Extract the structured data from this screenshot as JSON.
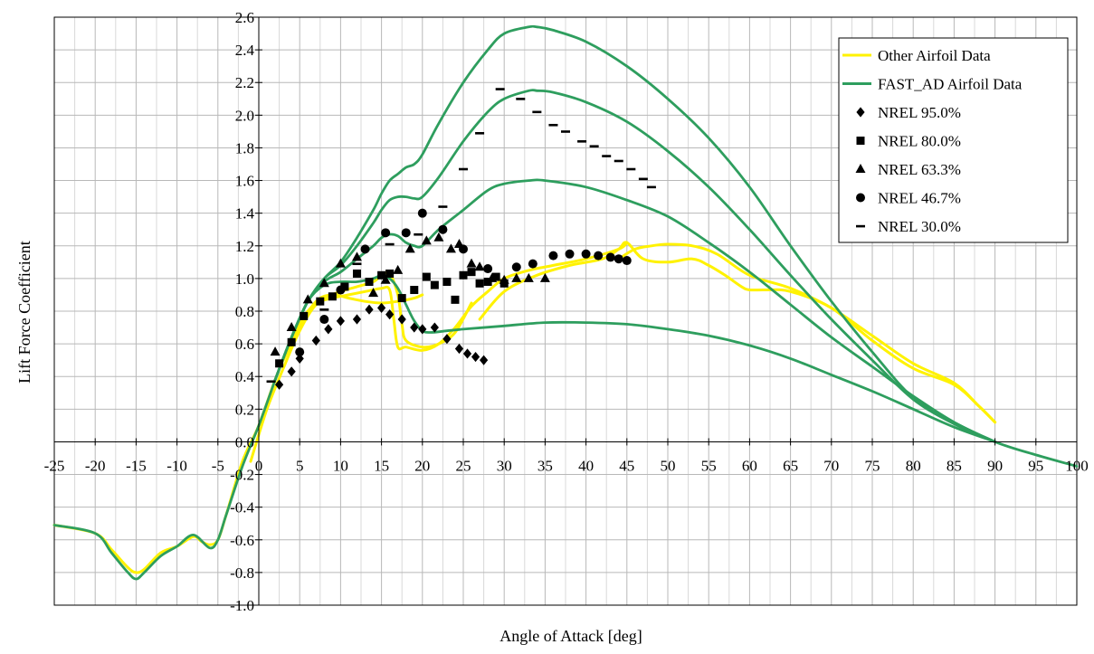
{
  "chart_data": {
    "type": "scatter",
    "title": "",
    "xlabel": "Angle of Attack [deg]",
    "ylabel": "Lift Force Coefficient",
    "xlim": [
      -25,
      100
    ],
    "ylim": [
      -1.0,
      2.6
    ],
    "x_ticks": [
      -25,
      -20,
      -15,
      -10,
      -5,
      0,
      5,
      10,
      15,
      20,
      25,
      30,
      35,
      40,
      45,
      50,
      55,
      60,
      65,
      70,
      75,
      80,
      85,
      90,
      95,
      100
    ],
    "x_tick_labels": [
      "-25",
      "-20",
      "-15",
      "-10",
      "-5",
      "0",
      "5",
      "10",
      "15",
      "20",
      "25",
      "30",
      "35",
      "40",
      "45",
      "50",
      "55",
      "60",
      "65",
      "70",
      "75",
      "80",
      "85",
      "90",
      "95",
      "100"
    ],
    "y_ticks": [
      -1.0,
      -0.8,
      -0.6,
      -0.4,
      -0.2,
      0.0,
      0.2,
      0.4,
      0.6,
      0.8,
      1.0,
      1.2,
      1.4,
      1.6,
      1.8,
      2.0,
      2.2,
      2.4,
      2.6
    ],
    "y_tick_labels": [
      "-1.0",
      "-0.8",
      "-0.6",
      "-0.4",
      "-0.2",
      "0.0",
      "0.2",
      "0.4",
      "0.6",
      "0.8",
      "1.0",
      "1.2",
      "1.4",
      "1.6",
      "1.8",
      "2.0",
      "2.2",
      "2.4",
      "2.6"
    ],
    "grid": true,
    "legend_position": "top-right",
    "colors": {
      "other": "#FFF200",
      "fast": "#2E9E5E",
      "marker": "#000000",
      "grid": "#B8B8B8",
      "axis": "#000000"
    },
    "series": [
      {
        "name": "Other Airfoil Data",
        "kind": "line",
        "color": "#FFF200",
        "legend": true,
        "curves": [
          {
            "x": [
              -25,
              -20,
              -18,
              -16,
              -15,
              -14,
              -12,
              -10,
              -8,
              -7,
              -6,
              -5,
              -4,
              -2,
              0,
              2,
              4,
              6,
              8,
              10,
              12,
              14,
              15,
              16,
              17,
              17.5,
              18,
              20,
              22,
              24,
              26
            ],
            "y": [
              -0.51,
              -0.56,
              -0.66,
              -0.77,
              -0.8,
              -0.78,
              -0.68,
              -0.64,
              -0.58,
              -0.61,
              -0.63,
              -0.6,
              -0.45,
              -0.12,
              0.1,
              0.38,
              0.62,
              0.8,
              0.88,
              0.92,
              0.95,
              0.98,
              1.02,
              1.03,
              0.9,
              0.72,
              0.62,
              0.58,
              0.6,
              0.67,
              0.85
            ]
          },
          {
            "x": [
              -1,
              1,
              3,
              5,
              7,
              9,
              11,
              13,
              15,
              16,
              16.5,
              17,
              18,
              20,
              22,
              24,
              26,
              28,
              30,
              33,
              36,
              40,
              44,
              45
            ],
            "y": [
              -0.12,
              0.2,
              0.45,
              0.68,
              0.84,
              0.88,
              0.9,
              0.92,
              0.94,
              0.93,
              0.75,
              0.58,
              0.58,
              0.56,
              0.6,
              0.7,
              0.83,
              0.92,
              1.0,
              1.05,
              1.08,
              1.12,
              1.18,
              1.22
            ]
          },
          {
            "x": [
              3,
              5,
              7,
              9,
              11,
              13,
              15,
              17,
              19,
              20
            ],
            "y": [
              0.5,
              0.7,
              0.86,
              0.9,
              0.88,
              0.86,
              0.85,
              0.86,
              0.88,
              0.9
            ]
          },
          {
            "x": [
              27,
              30,
              34,
              38,
              42,
              44,
              45,
              47,
              50,
              53,
              55,
              57,
              59,
              60,
              62,
              65,
              70,
              75,
              80,
              85,
              88,
              90
            ],
            "y": [
              0.75,
              0.92,
              1.02,
              1.08,
              1.12,
              1.18,
              1.22,
              1.12,
              1.1,
              1.12,
              1.08,
              1.02,
              0.95,
              0.93,
              0.93,
              0.92,
              0.82,
              0.62,
              0.45,
              0.35,
              0.22,
              0.12
            ]
          },
          {
            "x": [
              44,
              46,
              48,
              50,
              53,
              56,
              60,
              65,
              70,
              75,
              80,
              85,
              88,
              90
            ],
            "y": [
              1.12,
              1.18,
              1.2,
              1.21,
              1.2,
              1.15,
              1.02,
              0.94,
              0.82,
              0.65,
              0.48,
              0.36,
              0.22,
              0.12
            ]
          }
        ]
      },
      {
        "name": "FAST_AD Airfoil Data",
        "kind": "line",
        "color": "#2E9E5E",
        "legend": true,
        "curves": [
          {
            "x": [
              -25,
              -20,
              -18,
              -16,
              -15,
              -14,
              -12,
              -10,
              -8,
              -6,
              -5,
              -4,
              -2,
              0,
              2
            ],
            "y": [
              -0.51,
              -0.56,
              -0.68,
              -0.8,
              -0.84,
              -0.8,
              -0.7,
              -0.64,
              -0.57,
              -0.65,
              -0.6,
              -0.45,
              -0.15,
              0.1,
              0.38
            ]
          },
          {
            "x": [
              2,
              4,
              6,
              8,
              10,
              12,
              14,
              15,
              16,
              17,
              18,
              19,
              20,
              22,
              25,
              28,
              30,
              33,
              34,
              36,
              40,
              45,
              50,
              55,
              60,
              65,
              70,
              75,
              80,
              85,
              90,
              95,
              100
            ],
            "y": [
              0.38,
              0.64,
              0.86,
              1.0,
              1.1,
              1.25,
              1.42,
              1.52,
              1.6,
              1.64,
              1.68,
              1.7,
              1.76,
              1.95,
              2.2,
              2.4,
              2.5,
              2.54,
              2.54,
              2.52,
              2.45,
              2.3,
              2.1,
              1.86,
              1.56,
              1.2,
              0.86,
              0.55,
              0.27,
              0.12,
              0.0,
              -0.08,
              -0.15
            ]
          },
          {
            "x": [
              2,
              4,
              6,
              8,
              10,
              12,
              14,
              15,
              16,
              17,
              18,
              19,
              20,
              22,
              25,
              28,
              30,
              33,
              34,
              36,
              40,
              45,
              50,
              55,
              60,
              65,
              70,
              75,
              80,
              85,
              90
            ],
            "y": [
              0.38,
              0.64,
              0.86,
              1.0,
              1.08,
              1.2,
              1.34,
              1.42,
              1.48,
              1.5,
              1.5,
              1.49,
              1.5,
              1.62,
              1.84,
              2.02,
              2.1,
              2.15,
              2.15,
              2.14,
              2.08,
              1.96,
              1.78,
              1.56,
              1.3,
              1.02,
              0.75,
              0.5,
              0.26,
              0.11,
              0.0
            ]
          },
          {
            "x": [
              2,
              4,
              6,
              8,
              10,
              12,
              14,
              15,
              16,
              17,
              18,
              19,
              20,
              22,
              25,
              28,
              30,
              33,
              35,
              40,
              45,
              50,
              55,
              60,
              65,
              70,
              75,
              80,
              85,
              90
            ],
            "y": [
              0.38,
              0.64,
              0.86,
              0.98,
              1.04,
              1.12,
              1.2,
              1.25,
              1.27,
              1.26,
              1.22,
              1.2,
              1.2,
              1.3,
              1.42,
              1.54,
              1.58,
              1.6,
              1.6,
              1.56,
              1.48,
              1.38,
              1.22,
              1.04,
              0.84,
              0.64,
              0.46,
              0.28,
              0.12,
              0.0
            ]
          },
          {
            "x": [
              2,
              4,
              6,
              8,
              10,
              12,
              14,
              15,
              16,
              17,
              18,
              19,
              20,
              21,
              23,
              25,
              30,
              35,
              40,
              45,
              50,
              55,
              60,
              65,
              70,
              75,
              80,
              85,
              90
            ],
            "y": [
              0.38,
              0.64,
              0.86,
              0.96,
              0.98,
              0.98,
              1.0,
              1.02,
              1.0,
              0.94,
              0.84,
              0.74,
              0.68,
              0.67,
              0.68,
              0.69,
              0.71,
              0.73,
              0.73,
              0.72,
              0.69,
              0.65,
              0.59,
              0.51,
              0.41,
              0.31,
              0.2,
              0.09,
              0.0
            ]
          }
        ]
      },
      {
        "name": "NREL 95.0%",
        "kind": "scatter",
        "marker": "diamond",
        "color": "#000000",
        "legend": true,
        "x": [
          2.5,
          4,
          5,
          7,
          8.5,
          10,
          12,
          13.5,
          15,
          16,
          17.5,
          19,
          20,
          21.5,
          23,
          24.5,
          25.5,
          26.5,
          27.5
        ],
        "y": [
          0.35,
          0.43,
          0.51,
          0.62,
          0.69,
          0.74,
          0.75,
          0.81,
          0.82,
          0.78,
          0.75,
          0.7,
          0.69,
          0.7,
          0.63,
          0.57,
          0.54,
          0.52,
          0.5
        ]
      },
      {
        "name": "NREL 80.0%",
        "kind": "scatter",
        "marker": "square",
        "color": "#000000",
        "legend": true,
        "x": [
          2.5,
          4,
          5.5,
          7.5,
          9,
          10.5,
          12,
          13.5,
          15,
          16,
          17.5,
          19,
          20.5,
          21.5,
          23,
          24,
          25,
          26,
          27,
          28,
          29,
          30
        ],
        "y": [
          0.48,
          0.61,
          0.77,
          0.86,
          0.89,
          0.95,
          1.03,
          0.98,
          1.02,
          1.03,
          0.88,
          0.93,
          1.01,
          0.96,
          0.98,
          0.87,
          1.02,
          1.04,
          0.97,
          0.98,
          1.01,
          0.97
        ]
      },
      {
        "name": "NREL 63.3%",
        "kind": "scatter",
        "marker": "triangle",
        "color": "#000000",
        "legend": true,
        "x": [
          2,
          4,
          6,
          8,
          10,
          12,
          14,
          15.5,
          17,
          18.5,
          20.5,
          22,
          23.5,
          24.5,
          26,
          27,
          28.5,
          30,
          31.5,
          33,
          35
        ],
        "y": [
          0.55,
          0.7,
          0.87,
          0.97,
          1.09,
          1.13,
          0.91,
          0.99,
          1.05,
          1.18,
          1.23,
          1.25,
          1.18,
          1.21,
          1.09,
          1.07,
          1.0,
          0.99,
          1.0,
          1.0,
          1.0
        ]
      },
      {
        "name": "NREL 46.7%",
        "kind": "scatter",
        "marker": "circle",
        "color": "#000000",
        "legend": true,
        "x": [
          5,
          8,
          10,
          13,
          15.5,
          18,
          20,
          22.5,
          25,
          28,
          31.5,
          33.5,
          36,
          38,
          40,
          41.5,
          43,
          44,
          45
        ],
        "y": [
          0.55,
          0.75,
          0.93,
          1.18,
          1.28,
          1.28,
          1.4,
          1.3,
          1.18,
          1.06,
          1.07,
          1.09,
          1.14,
          1.15,
          1.15,
          1.14,
          1.13,
          1.12,
          1.11
        ]
      },
      {
        "name": "NREL 30.0%",
        "kind": "scatter",
        "marker": "dash",
        "color": "#000000",
        "legend": true,
        "x": [
          1.5,
          8,
          12,
          16,
          19.5,
          22.5,
          25,
          27,
          29.5,
          32,
          34,
          36,
          37.5,
          39.5,
          41,
          42.5,
          44,
          45.5,
          47,
          48
        ],
        "y": [
          0.37,
          0.81,
          1.09,
          1.21,
          1.27,
          1.44,
          1.67,
          1.89,
          2.16,
          2.1,
          2.02,
          1.94,
          1.9,
          1.84,
          1.81,
          1.75,
          1.72,
          1.67,
          1.61,
          1.56
        ]
      }
    ]
  }
}
